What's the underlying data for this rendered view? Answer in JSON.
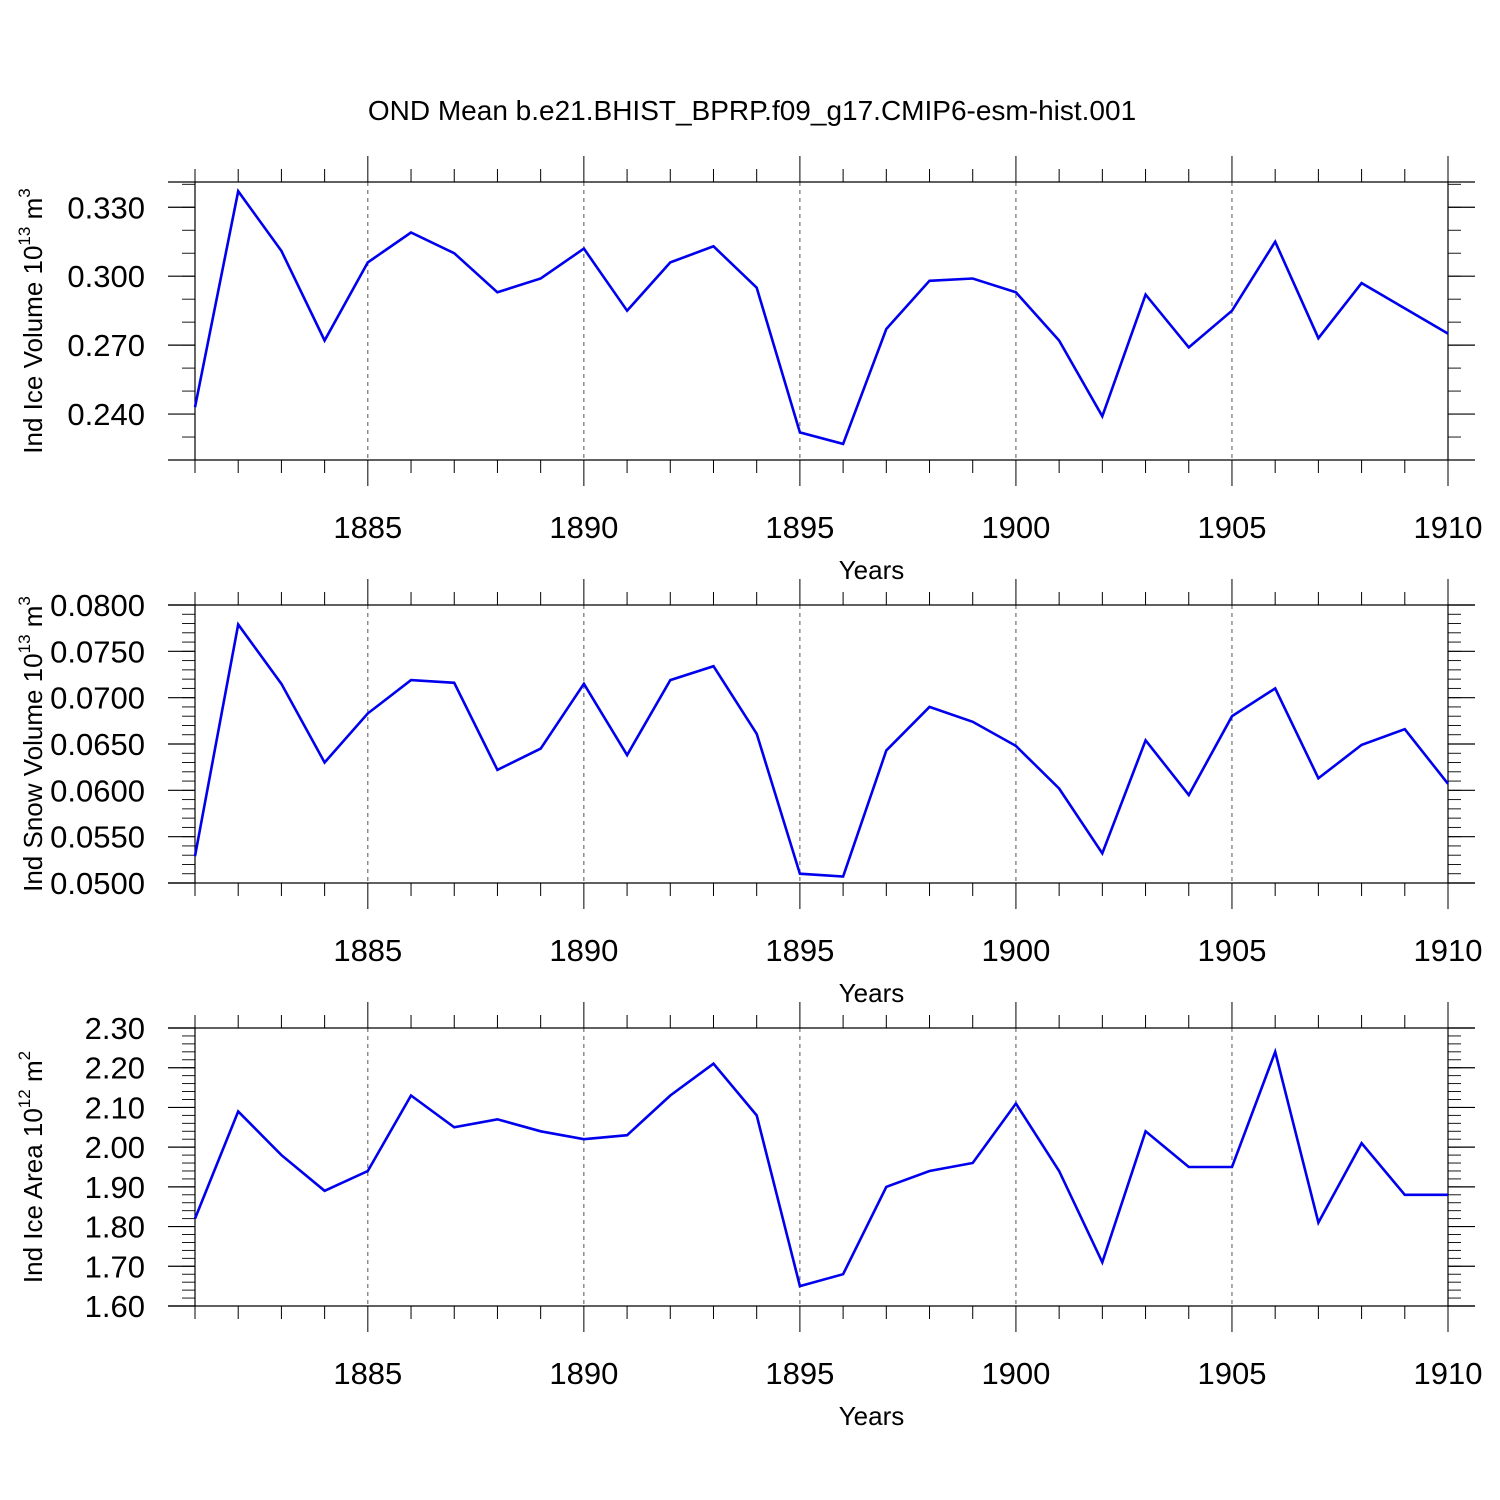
{
  "chart_data": {
    "type": "line",
    "title": "OND Mean b.e21.BHIST_BPRP.f09_g17.CMIP6-esm-hist.001",
    "x": [
      1881,
      1882,
      1883,
      1884,
      1885,
      1886,
      1887,
      1888,
      1889,
      1890,
      1891,
      1892,
      1893,
      1894,
      1895,
      1896,
      1897,
      1898,
      1899,
      1900,
      1901,
      1902,
      1903,
      1904,
      1905,
      1906,
      1907,
      1908,
      1909,
      1910
    ],
    "xlim": [
      1881,
      1910
    ],
    "x_major_ticks": [
      1885,
      1890,
      1895,
      1900,
      1905,
      1910
    ],
    "x_tick_labels": [
      "1885",
      "1890",
      "1895",
      "1900",
      "1905",
      "1910"
    ],
    "line_color": "#0000ee",
    "grid": "vertical dashed at major ticks",
    "panels": [
      {
        "id": "ice-volume",
        "ylabel": "Ind Ice Volume 10",
        "ylabel_exp": "13",
        "ylabel_unit": " m",
        "ylabel_unit_exp": "3",
        "xlabel": "Years",
        "ylim": [
          0.22,
          0.341
        ],
        "y_major_ticks": [
          0.24,
          0.27,
          0.3,
          0.33
        ],
        "y_tick_labels": [
          "0.240",
          "0.270",
          "0.300",
          "0.330"
        ],
        "y_minor_step": 0.01,
        "values": [
          0.243,
          0.337,
          0.311,
          0.272,
          0.306,
          0.319,
          0.31,
          0.293,
          0.299,
          0.312,
          0.285,
          0.306,
          0.313,
          0.295,
          0.232,
          0.227,
          0.277,
          0.298,
          0.299,
          0.293,
          0.272,
          0.239,
          0.292,
          0.269,
          0.285,
          0.315,
          0.273,
          0.297,
          0.286,
          0.275
        ]
      },
      {
        "id": "snow-volume",
        "ylabel": "Ind Snow Volume 10",
        "ylabel_exp": "13",
        "ylabel_unit": " m",
        "ylabel_unit_exp": "3",
        "xlabel": "Years",
        "ylim": [
          0.05,
          0.08
        ],
        "y_major_ticks": [
          0.05,
          0.055,
          0.06,
          0.065,
          0.07,
          0.075,
          0.08
        ],
        "y_tick_labels": [
          "0.0500",
          "0.0550",
          "0.0600",
          "0.0650",
          "0.0700",
          "0.0750",
          "0.0800"
        ],
        "y_minor_step": 0.001,
        "values": [
          0.0529,
          0.0779,
          0.0715,
          0.063,
          0.0683,
          0.0719,
          0.0716,
          0.0622,
          0.0645,
          0.0715,
          0.0638,
          0.0719,
          0.0734,
          0.0661,
          0.051,
          0.0507,
          0.0643,
          0.069,
          0.0674,
          0.0648,
          0.0602,
          0.0532,
          0.0654,
          0.0595,
          0.068,
          0.071,
          0.0613,
          0.0649,
          0.0666,
          0.0607
        ]
      },
      {
        "id": "ice-area",
        "ylabel": "Ind Ice Area 10",
        "ylabel_exp": "12",
        "ylabel_unit": " m",
        "ylabel_unit_exp": "2",
        "xlabel": "Years",
        "ylim": [
          1.6,
          2.3
        ],
        "y_major_ticks": [
          1.6,
          1.7,
          1.8,
          1.9,
          2.0,
          2.1,
          2.2,
          2.3
        ],
        "y_tick_labels": [
          "1.60",
          "1.70",
          "1.80",
          "1.90",
          "2.00",
          "2.10",
          "2.20",
          "2.30"
        ],
        "y_minor_step": 0.02,
        "values": [
          1.82,
          2.09,
          1.98,
          1.89,
          1.94,
          2.13,
          2.05,
          2.07,
          2.04,
          2.02,
          2.03,
          2.13,
          2.21,
          2.08,
          1.65,
          1.68,
          1.9,
          1.94,
          1.96,
          2.11,
          1.94,
          1.71,
          2.04,
          1.95,
          1.95,
          2.24,
          1.81,
          2.01,
          1.88,
          1.88
        ]
      }
    ]
  }
}
